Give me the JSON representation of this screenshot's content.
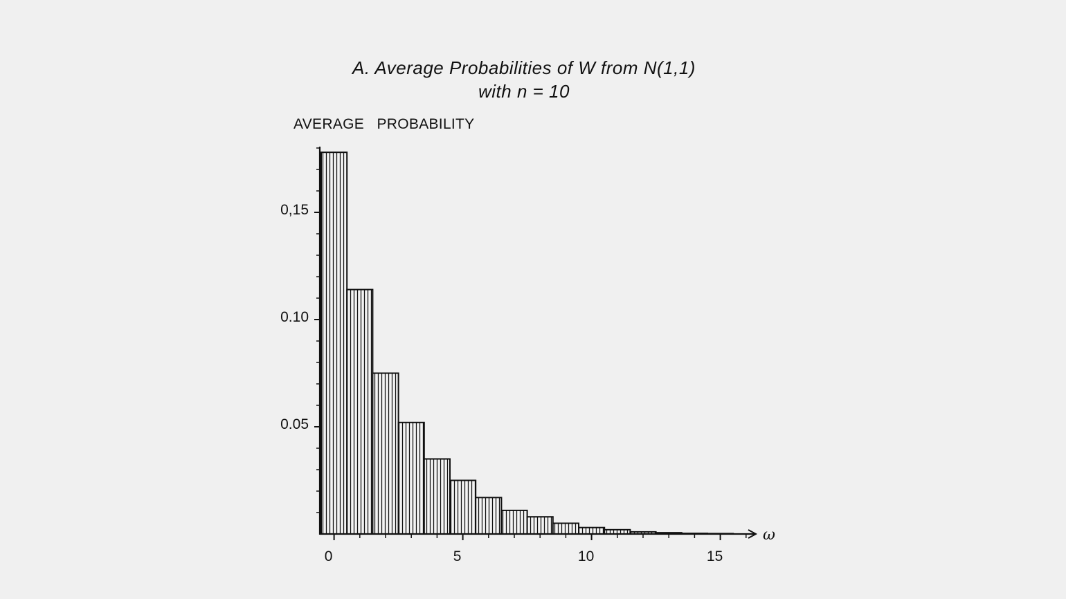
{
  "chart_data": {
    "type": "bar",
    "title_line1": "A. Average Probabilities of W from N(1,1)",
    "title_line2": "with n = 10",
    "ylabel": "AVERAGE   PROBABILITY",
    "xlabel": "ω",
    "x": [
      0,
      1,
      2,
      3,
      4,
      5,
      6,
      7,
      8,
      9,
      10,
      11,
      12,
      13,
      14,
      15
    ],
    "values": [
      0.178,
      0.114,
      0.075,
      0.052,
      0.035,
      0.025,
      0.017,
      0.011,
      0.008,
      0.005,
      0.003,
      0.002,
      0.001,
      0.0006,
      0.0003,
      0.0002
    ],
    "xlim": [
      -0.3,
      16.4
    ],
    "ylim": [
      0,
      0.18
    ],
    "x_ticks": [
      {
        "value": 0,
        "label": "0"
      },
      {
        "value": 5,
        "label": "5"
      },
      {
        "value": 10,
        "label": "10"
      },
      {
        "value": 15,
        "label": "15"
      }
    ],
    "y_ticks": [
      {
        "value": 0.15,
        "label": "0,15"
      },
      {
        "value": 0.1,
        "label": "0.10"
      },
      {
        "value": 0.05,
        "label": "0.05"
      }
    ],
    "y_minor_step": 0.01,
    "x_minor_step": 1,
    "grid": false,
    "legend": "none",
    "bar_fill": "hatched-vertical",
    "colors": {
      "background": "#f0f0f0",
      "ink": "#111111"
    }
  }
}
